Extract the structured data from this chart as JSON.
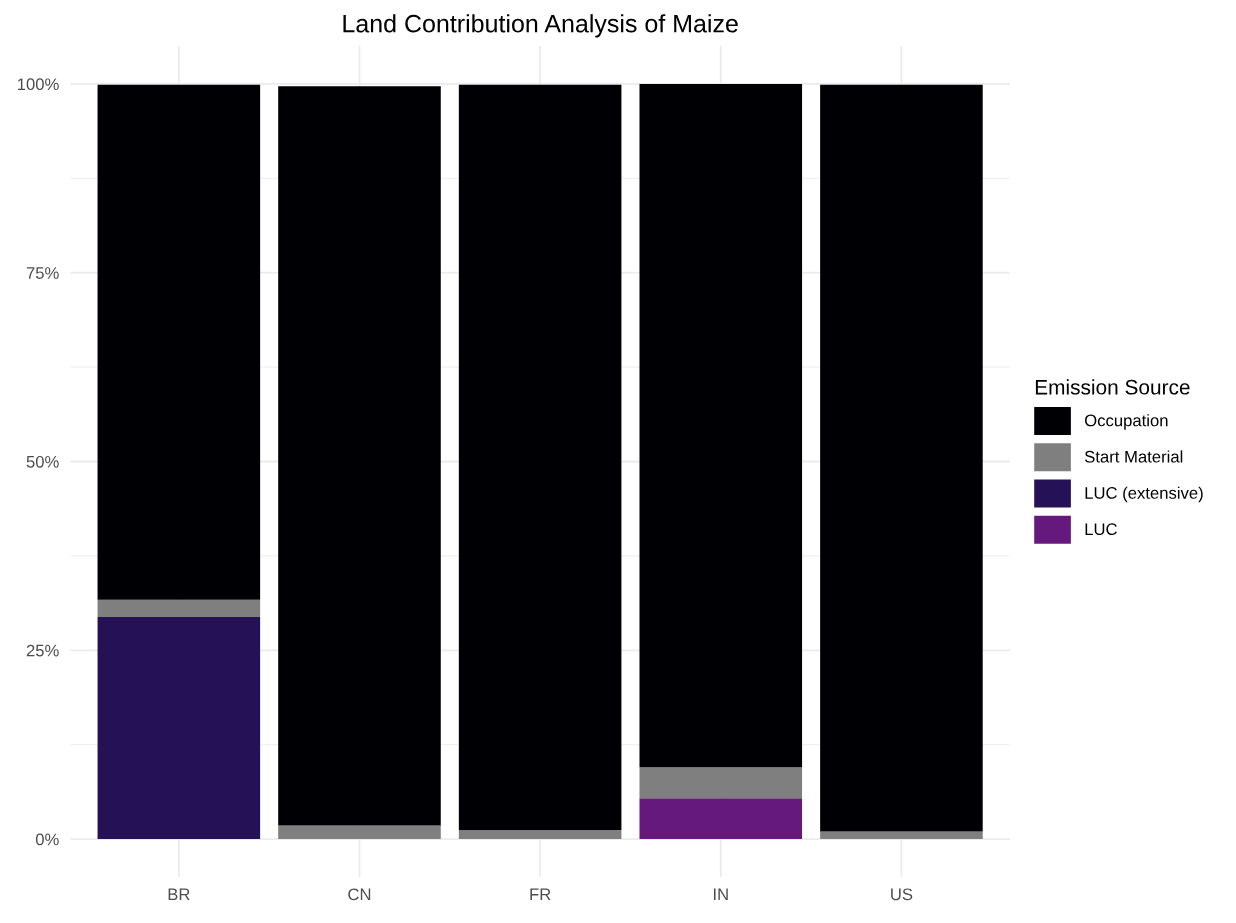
{
  "chart_data": {
    "type": "bar",
    "title": "Land Contribution Analysis of Maize",
    "legend_title": "Emission Source",
    "categories": [
      "BR",
      "CN",
      "FR",
      "IN",
      "US"
    ],
    "stacked": true,
    "series": [
      {
        "name": "LUC",
        "color": "#65197d",
        "values": [
          0,
          0,
          0,
          5.4,
          0
        ]
      },
      {
        "name": "LUC (extensive)",
        "color": "#251256",
        "values": [
          29.4,
          0,
          0,
          0,
          0
        ]
      },
      {
        "name": "Start Material",
        "color": "#7f7f7f",
        "values": [
          2.3,
          1.8,
          1.2,
          4.1,
          1.0
        ]
      },
      {
        "name": "Occupation",
        "color": "#000004",
        "values": [
          68.2,
          97.9,
          98.7,
          90.5,
          98.9
        ]
      }
    ],
    "ylim": [
      -5,
      105
    ],
    "yticks": [
      {
        "value": 0,
        "label": "0%"
      },
      {
        "value": 25,
        "label": "25%"
      },
      {
        "value": 50,
        "label": "50%"
      },
      {
        "value": 75,
        "label": "75%"
      },
      {
        "value": 100,
        "label": "100%"
      }
    ],
    "grid": true,
    "legend": "right"
  }
}
